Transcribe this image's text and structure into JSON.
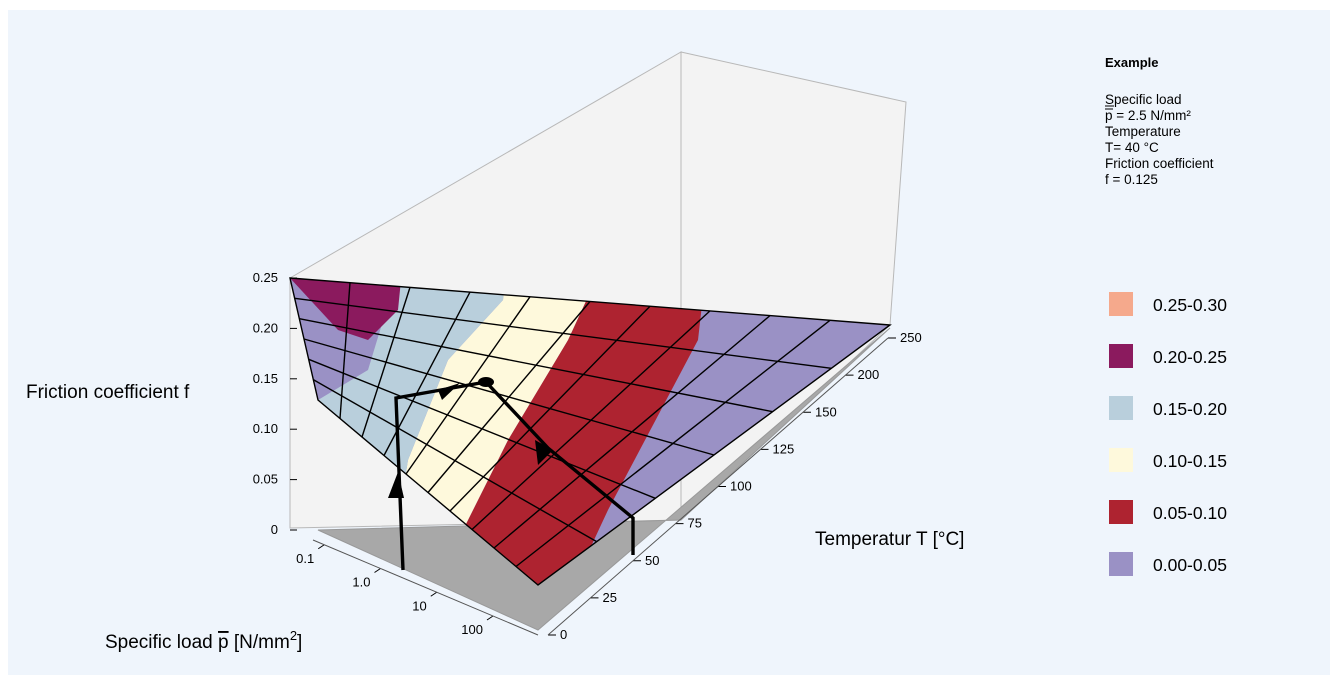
{
  "chart_data": {
    "type": "surface-3d",
    "z_axis": {
      "label": "Friction coefficient f",
      "ticks": [
        "0",
        "0.05",
        "0.10",
        "0.15",
        "0.20",
        "0.25"
      ],
      "range": [
        0,
        0.25
      ]
    },
    "temperature_axis": {
      "label": "Temperatur T [°C]",
      "ticks": [
        "0",
        "25",
        "50",
        "75",
        "100",
        "125",
        "150",
        "200",
        "250"
      ]
    },
    "load_axis": {
      "label_prefix": "Specific load ",
      "label_symbol": "p",
      "label_unit": " [N/mm",
      "label_exponent": "2",
      "label_suffix": "]",
      "ticks": [
        "0.1",
        "1.0",
        "10",
        "100"
      ],
      "scale": "log"
    },
    "legend": [
      {
        "label": "0.25-0.30",
        "color": "#f5a98c"
      },
      {
        "label": "0.20-0.25",
        "color": "#8b1a5e"
      },
      {
        "label": "0.15-0.20",
        "color": "#b9cfdc"
      },
      {
        "label": "0.10-0.15",
        "color": "#fef9dc"
      },
      {
        "label": "0.05-0.10",
        "color": "#ae2330"
      },
      {
        "label": "0.00-0.05",
        "color": "#9a91c5"
      }
    ],
    "example": {
      "title": "Example",
      "specific_load_label": "Specific load",
      "specific_load_value": "p = 2.5 N/mm²",
      "temperature_label": "Temperature",
      "temperature_value": "T= 40 °C",
      "friction_label": "Friction coefficient",
      "friction_value": "f = 0.125",
      "load": 2.5,
      "temperature": 40,
      "friction": 0.125
    },
    "surface_bands": [
      {
        "range": "0.20-0.25",
        "region": "high friction at low temperature"
      },
      {
        "range": "0.15-0.20",
        "region": "low temperature"
      },
      {
        "range": "0.10-0.15",
        "region": "low-moderate temperature"
      },
      {
        "range": "0.05-0.10",
        "region": "moderate temperature"
      },
      {
        "range": "0.00-0.05",
        "region": "high temperature"
      }
    ],
    "grid": true,
    "legend_position": "right"
  }
}
